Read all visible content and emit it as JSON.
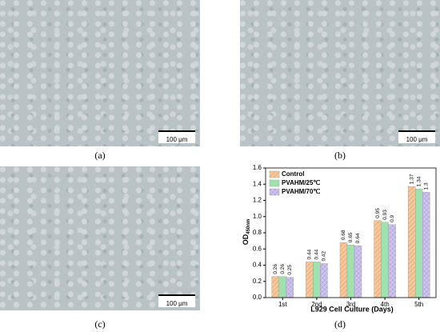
{
  "panels": [
    {
      "label": "(a)",
      "scale_bar": "100 μm"
    },
    {
      "label": "(b)",
      "scale_bar": "100 μm"
    },
    {
      "label": "(c)",
      "scale_bar": "100 μm"
    },
    {
      "label": "(d)"
    }
  ],
  "chart_data": {
    "type": "bar",
    "y_label": "OD",
    "y_label_sub": "450nm",
    "x_label": "L929 Cell Culture (Days)",
    "categories": [
      "1st",
      "2nd",
      "3rd",
      "4th",
      "5th"
    ],
    "series": [
      {
        "name": "Control",
        "color": "#f7c79a",
        "values": [
          0.26,
          0.44,
          0.68,
          0.95,
          1.37
        ]
      },
      {
        "name": "PVAHM/25℃",
        "color": "#9ee3ad",
        "values": [
          0.26,
          0.44,
          0.65,
          0.93,
          1.34
        ]
      },
      {
        "name": "PVAHM/70℃",
        "color": "#cfc3ef",
        "values": [
          0.25,
          0.42,
          0.64,
          0.9,
          1.3
        ]
      }
    ],
    "ylim": [
      0,
      1.6
    ],
    "yticks": [
      {
        "value": 0,
        "label": "0.0"
      },
      0.2,
      0.4,
      0.6,
      0.8,
      {
        "value": 1,
        "label": "1.0"
      },
      1.2,
      1.4,
      1.6
    ],
    "legend": "upper left"
  }
}
